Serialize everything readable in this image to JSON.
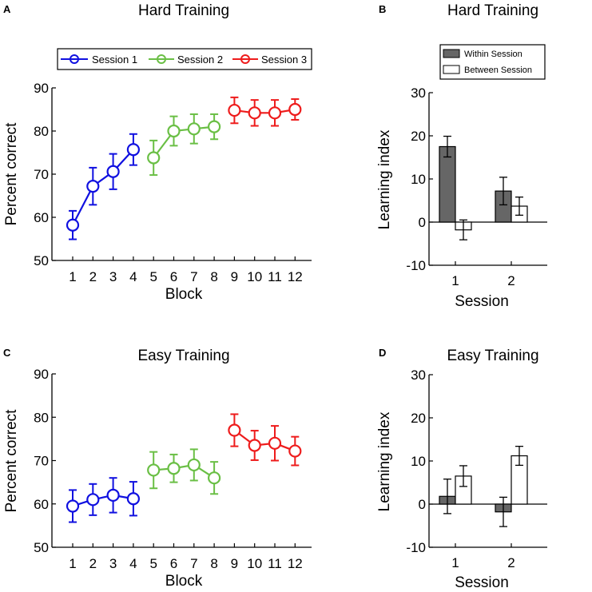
{
  "chart_data": [
    {
      "panel": "A",
      "type": "line",
      "title": "Hard Training",
      "xlabel": "Block",
      "ylabel": "Percent correct",
      "ylim": [
        50,
        90
      ],
      "yticks": [
        50,
        60,
        70,
        80,
        90
      ],
      "categories": [
        "1",
        "2",
        "3",
        "4",
        "5",
        "6",
        "7",
        "8",
        "9",
        "10",
        "11",
        "12"
      ],
      "legend_position": "top",
      "series": [
        {
          "name": "Session 1",
          "color": "#1010e0",
          "x": [
            1,
            2,
            3,
            4
          ],
          "values": [
            58.2,
            67.2,
            70.6,
            75.7
          ],
          "err": [
            3.3,
            4.3,
            4.1,
            3.6
          ]
        },
        {
          "name": "Session 2",
          "color": "#6abf45",
          "x": [
            5,
            6,
            7,
            8
          ],
          "values": [
            73.8,
            80.0,
            80.5,
            81.0
          ],
          "err": [
            4.0,
            3.4,
            3.4,
            2.9
          ]
        },
        {
          "name": "Session 3",
          "color": "#ee1c1c",
          "x": [
            9,
            10,
            11,
            12
          ],
          "values": [
            84.8,
            84.2,
            84.2,
            85.0
          ],
          "err": [
            3.0,
            3.0,
            3.0,
            2.4
          ]
        }
      ]
    },
    {
      "panel": "B",
      "type": "bar",
      "title": "Hard Training",
      "xlabel": "Session",
      "ylabel": "Learning index",
      "ylim": [
        -10,
        30
      ],
      "yticks": [
        -10,
        0,
        10,
        20,
        30
      ],
      "categories": [
        "1",
        "2"
      ],
      "legend_position": "top",
      "series": [
        {
          "name": "Within Session",
          "color": "#666666",
          "values": [
            17.5,
            7.2
          ],
          "err": [
            2.4,
            3.2
          ]
        },
        {
          "name": "Between Session",
          "color": "#ffffff",
          "values": [
            -1.8,
            3.7
          ],
          "err": [
            2.3,
            2.1
          ]
        }
      ]
    },
    {
      "panel": "C",
      "type": "line",
      "title": "Easy Training",
      "xlabel": "Block",
      "ylabel": "Percent correct",
      "ylim": [
        50,
        90
      ],
      "yticks": [
        50,
        60,
        70,
        80,
        90
      ],
      "categories": [
        "1",
        "2",
        "3",
        "4",
        "5",
        "6",
        "7",
        "8",
        "9",
        "10",
        "11",
        "12"
      ],
      "series": [
        {
          "name": "Session 1",
          "color": "#1010e0",
          "x": [
            1,
            2,
            3,
            4
          ],
          "values": [
            59.5,
            61.0,
            62.0,
            61.2
          ],
          "err": [
            3.7,
            3.6,
            4.0,
            3.9
          ]
        },
        {
          "name": "Session 2",
          "color": "#6abf45",
          "x": [
            5,
            6,
            7,
            8
          ],
          "values": [
            67.8,
            68.2,
            69.0,
            66.0
          ],
          "err": [
            4.2,
            3.2,
            3.6,
            3.7
          ]
        },
        {
          "name": "Session 3",
          "color": "#ee1c1c",
          "x": [
            9,
            10,
            11,
            12
          ],
          "values": [
            77.0,
            73.5,
            74.0,
            72.2
          ],
          "err": [
            3.7,
            3.4,
            4.0,
            3.3
          ]
        }
      ]
    },
    {
      "panel": "D",
      "type": "bar",
      "title": "Easy Training",
      "xlabel": "Session",
      "ylabel": "Learning index",
      "ylim": [
        -10,
        30
      ],
      "yticks": [
        -10,
        0,
        10,
        20,
        30
      ],
      "categories": [
        "1",
        "2"
      ],
      "series": [
        {
          "name": "Within Session",
          "color": "#666666",
          "values": [
            1.8,
            -1.8
          ],
          "err": [
            4.0,
            3.4
          ]
        },
        {
          "name": "Between Session",
          "color": "#ffffff",
          "values": [
            6.5,
            11.2
          ],
          "err": [
            2.4,
            2.2
          ]
        }
      ]
    }
  ]
}
